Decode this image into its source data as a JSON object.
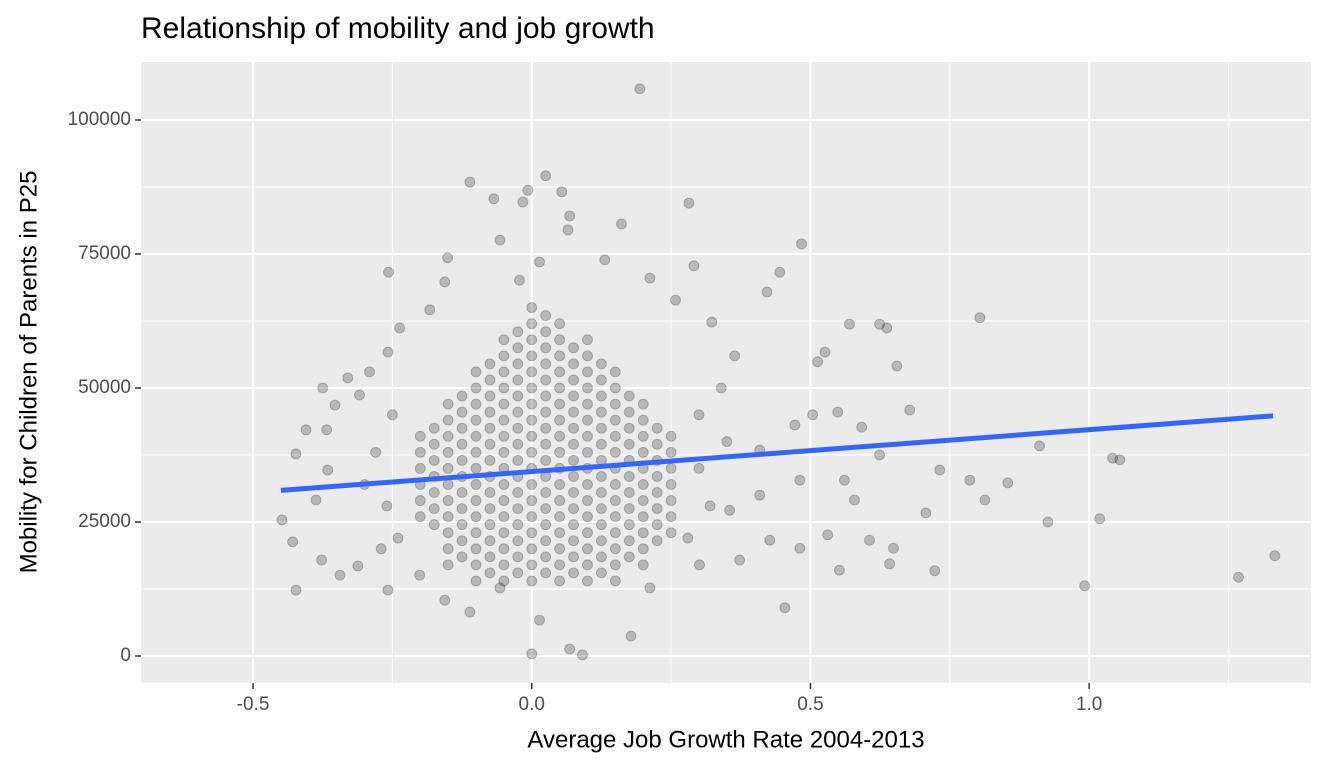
{
  "chart_data": {
    "type": "scatter",
    "title": "Relationship of mobility and job growth",
    "x_label": "Average Job Growth Rate 2004-2013",
    "y_label": "Mobility for Children of Parents in P25",
    "xlim": [
      -0.701,
      1.398
    ],
    "ylim": [
      -5037,
      110821
    ],
    "xticks": [
      -0.5,
      {
        "value": 0,
        "label": "0.0"
      },
      0.5,
      {
        "value": 1,
        "label": "1.0"
      }
    ],
    "yticks": [
      0,
      25000,
      50000,
      75000,
      100000
    ],
    "xminor_ticks": [
      -0.25,
      0.25,
      0.75,
      1.25
    ],
    "yminor_ticks": [
      12500,
      37500,
      62500,
      87500
    ],
    "grid": true,
    "panel_color": "#ebebeb",
    "color": "#000000",
    "point_alpha": 0.22,
    "x": [
      -0.2,
      -0.2,
      -0.2,
      -0.2,
      -0.2,
      -0.2,
      -0.175,
      -0.175,
      -0.175,
      -0.175,
      -0.175,
      -0.175,
      -0.175,
      -0.15,
      -0.15,
      -0.15,
      -0.15,
      -0.15,
      -0.15,
      -0.15,
      -0.15,
      -0.15,
      -0.15,
      -0.15,
      -0.125,
      -0.125,
      -0.125,
      -0.125,
      -0.125,
      -0.125,
      -0.125,
      -0.125,
      -0.125,
      -0.125,
      -0.125,
      -0.1,
      -0.1,
      -0.1,
      -0.1,
      -0.1,
      -0.1,
      -0.1,
      -0.1,
      -0.1,
      -0.1,
      -0.1,
      -0.1,
      -0.1,
      -0.1,
      -0.075,
      -0.075,
      -0.075,
      -0.075,
      -0.075,
      -0.075,
      -0.075,
      -0.075,
      -0.075,
      -0.075,
      -0.075,
      -0.075,
      -0.075,
      -0.075,
      -0.05,
      -0.05,
      -0.05,
      -0.05,
      -0.05,
      -0.05,
      -0.05,
      -0.05,
      -0.05,
      -0.05,
      -0.05,
      -0.05,
      -0.05,
      -0.05,
      -0.05,
      -0.05,
      -0.025,
      -0.025,
      -0.025,
      -0.025,
      -0.025,
      -0.025,
      -0.025,
      -0.025,
      -0.025,
      -0.025,
      -0.025,
      -0.025,
      -0.025,
      -0.025,
      -0.025,
      -0.025,
      0,
      0,
      0,
      0,
      0,
      0,
      0,
      0,
      0,
      0,
      0,
      0,
      0,
      0,
      0,
      0,
      0,
      0,
      0.025,
      0.025,
      0.025,
      0.025,
      0.025,
      0.025,
      0.025,
      0.025,
      0.025,
      0.025,
      0.025,
      0.025,
      0.025,
      0.025,
      0.025,
      0.025,
      0.025,
      0.05,
      0.05,
      0.05,
      0.05,
      0.05,
      0.05,
      0.05,
      0.05,
      0.05,
      0.05,
      0.05,
      0.05,
      0.05,
      0.05,
      0.05,
      0.05,
      0.05,
      0.075,
      0.075,
      0.075,
      0.075,
      0.075,
      0.075,
      0.075,
      0.075,
      0.075,
      0.075,
      0.075,
      0.075,
      0.075,
      0.075,
      0.075,
      0.1,
      0.1,
      0.1,
      0.1,
      0.1,
      0.1,
      0.1,
      0.1,
      0.1,
      0.1,
      0.1,
      0.1,
      0.1,
      0.1,
      0.1,
      0.1,
      0.125,
      0.125,
      0.125,
      0.125,
      0.125,
      0.125,
      0.125,
      0.125,
      0.125,
      0.125,
      0.125,
      0.125,
      0.125,
      0.125,
      0.15,
      0.15,
      0.15,
      0.15,
      0.15,
      0.15,
      0.15,
      0.15,
      0.15,
      0.15,
      0.15,
      0.15,
      0.15,
      0.15,
      0.175,
      0.175,
      0.175,
      0.175,
      0.175,
      0.175,
      0.175,
      0.175,
      0.175,
      0.175,
      0.175,
      0.2,
      0.2,
      0.2,
      0.2,
      0.2,
      0.2,
      0.2,
      0.2,
      0.2,
      0.2,
      0.2,
      0.225,
      0.225,
      0.225,
      0.225,
      0.225,
      0.225,
      0.225,
      0.225,
      0.25,
      0.25,
      0.25,
      0.25,
      0.25,
      0.25,
      0.25,
      -0.448,
      -0.429,
      -0.423,
      -0.423,
      -0.405,
      -0.375,
      -0.368,
      -0.353,
      -0.33,
      -0.344,
      -0.257,
      -0.151,
      -0.111,
      -0.068,
      -0.057,
      -0.016,
      -0.007,
      0.025,
      0.054,
      0.068,
      0.065,
      0.161,
      0.194,
      0.282,
      0.291,
      0.484,
      0.445,
      0.422,
      0.624,
      0.637,
      0.57,
      0.804,
      0.655,
      0.678,
      0.592,
      0.624,
      0.732,
      0.786,
      0.854,
      0.911,
      1.042,
      1.055,
      0.813,
      1.019,
      0.926,
      0.707,
      0.723,
      0.649,
      0.642,
      0.992,
      1.268,
      1.333,
      0.454,
      0.178,
      0.068,
      0.091,
      0,
      0.014,
      -0.111,
      -0.156,
      0.526,
      0.513,
      0.549,
      0.504,
      0.472,
      0.409,
      0.364,
      0.323,
      0.258,
      0.212,
      0.131,
      0.014,
      -0.022,
      -0.156,
      -0.183,
      -0.237,
      -0.258,
      -0.291,
      -0.309,
      -0.366,
      -0.387,
      -0.377,
      -0.312,
      -0.258,
      -0.201,
      -0.057,
      0.212,
      0.301,
      0.373,
      0.427,
      0.481,
      0.552,
      0.606,
      0.531,
      0.355,
      0.409,
      0.481,
      0.561,
      0.579,
      -0.28,
      -0.26,
      -0.25,
      -0.24,
      0.3,
      0.32,
      0.3,
      0.28,
      0.35,
      0.34,
      -0.3,
      -0.27
    ],
    "values": [
      26000,
      29000,
      32000,
      35000,
      38000,
      41000,
      24500,
      27500,
      30500,
      33500,
      36500,
      39500,
      42500,
      17000,
      20000,
      23000,
      26000,
      29000,
      32000,
      35000,
      38000,
      41000,
      44000,
      47000,
      18500,
      21500,
      24500,
      27500,
      30500,
      33500,
      36500,
      39500,
      42500,
      45500,
      48500,
      14000,
      17000,
      20000,
      23000,
      26000,
      29000,
      32000,
      35000,
      38000,
      41000,
      44000,
      47000,
      50000,
      53000,
      15500,
      18500,
      21500,
      24500,
      27500,
      30500,
      33500,
      36500,
      39500,
      42500,
      45500,
      48500,
      51500,
      54500,
      14000,
      17000,
      20000,
      23000,
      26000,
      29000,
      32000,
      35000,
      38000,
      41000,
      44000,
      47000,
      50000,
      53000,
      56000,
      59000,
      15500,
      18500,
      21500,
      24500,
      27500,
      30500,
      33500,
      36500,
      39500,
      42500,
      45500,
      48500,
      51500,
      54500,
      57500,
      60500,
      14000,
      17000,
      20000,
      23000,
      26000,
      29000,
      32000,
      35000,
      38000,
      41000,
      44000,
      47000,
      50000,
      53000,
      56000,
      59000,
      62000,
      65000,
      15500,
      18500,
      21500,
      24500,
      27500,
      30500,
      33500,
      36500,
      39500,
      42500,
      45500,
      48500,
      51500,
      54500,
      57500,
      60500,
      63500,
      14000,
      17000,
      20000,
      23000,
      26000,
      29000,
      32000,
      35000,
      38000,
      41000,
      44000,
      47000,
      50000,
      53000,
      56000,
      59000,
      62000,
      15500,
      18500,
      21500,
      24500,
      27500,
      30500,
      33500,
      36500,
      39500,
      42500,
      45500,
      48500,
      51500,
      54500,
      57500,
      14000,
      17000,
      20000,
      23000,
      26000,
      29000,
      32000,
      35000,
      38000,
      41000,
      44000,
      47000,
      50000,
      53000,
      56000,
      59000,
      15500,
      18500,
      21500,
      24500,
      27500,
      30500,
      33500,
      36500,
      39500,
      42500,
      45500,
      48500,
      51500,
      54500,
      14000,
      17000,
      20000,
      23000,
      26000,
      29000,
      32000,
      35000,
      38000,
      41000,
      44000,
      47000,
      50000,
      53000,
      18500,
      21500,
      24500,
      27500,
      30500,
      33500,
      36500,
      39500,
      42500,
      45500,
      48500,
      17000,
      20000,
      23000,
      26000,
      29000,
      32000,
      35000,
      38000,
      41000,
      44000,
      47000,
      21500,
      24500,
      27500,
      30500,
      33500,
      36500,
      39500,
      42500,
      23000,
      26000,
      29000,
      32000,
      35000,
      38000,
      41000,
      25400,
      21300,
      12300,
      37700,
      42200,
      50000,
      42200,
      46800,
      51900,
      15100,
      71600,
      74300,
      88400,
      85300,
      77600,
      84700,
      86900,
      89600,
      86600,
      82100,
      79500,
      80600,
      105800,
      84500,
      72800,
      76900,
      71600,
      67900,
      61900,
      61200,
      61900,
      63100,
      54100,
      45900,
      42700,
      37500,
      34700,
      32800,
      32300,
      39200,
      36900,
      36600,
      29100,
      25600,
      25000,
      26700,
      15900,
      20100,
      17200,
      13100,
      14700,
      18700,
      9000,
      3700,
      1300,
      200,
      400,
      6700,
      8200,
      10400,
      56700,
      54900,
      45500,
      45000,
      43100,
      38400,
      56000,
      62300,
      66400,
      70500,
      73900,
      73500,
      70100,
      69800,
      64600,
      61200,
      56700,
      53000,
      48700,
      34700,
      29100,
      17900,
      16800,
      12300,
      15100,
      12700,
      12700,
      17000,
      17900,
      21600,
      20100,
      16000,
      21600,
      22600,
      27200,
      30000,
      32800,
      32800,
      29100,
      38000,
      28000,
      45000,
      22000,
      35000,
      28000,
      45000,
      22000,
      40000,
      50000,
      32000,
      20000
    ],
    "trend": {
      "color": "#3366ff",
      "x": [
        -0.45,
        1.33
      ],
      "values": [
        30900,
        44800
      ]
    }
  }
}
